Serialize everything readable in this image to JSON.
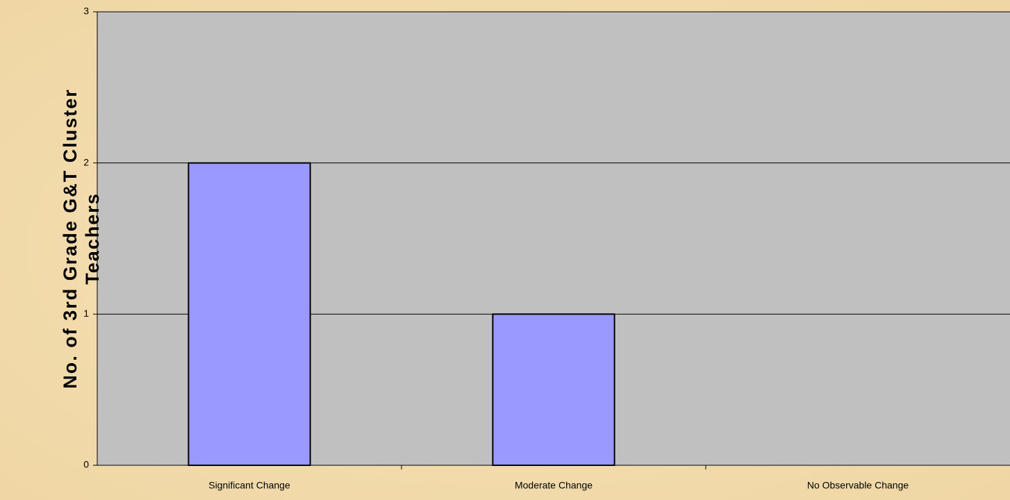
{
  "chart_data": {
    "type": "bar",
    "y_label_lines": [
      "No. of 3rd Grade G&T Cluster",
      "Teachers"
    ],
    "categories": [
      "Significant Change",
      "Moderate Change",
      "No Observable Change"
    ],
    "values": [
      2,
      1,
      0
    ],
    "color": "#9999ff",
    "ylim": [
      0,
      3
    ],
    "yticks": [
      0,
      1,
      2,
      3
    ],
    "grid": true
  }
}
